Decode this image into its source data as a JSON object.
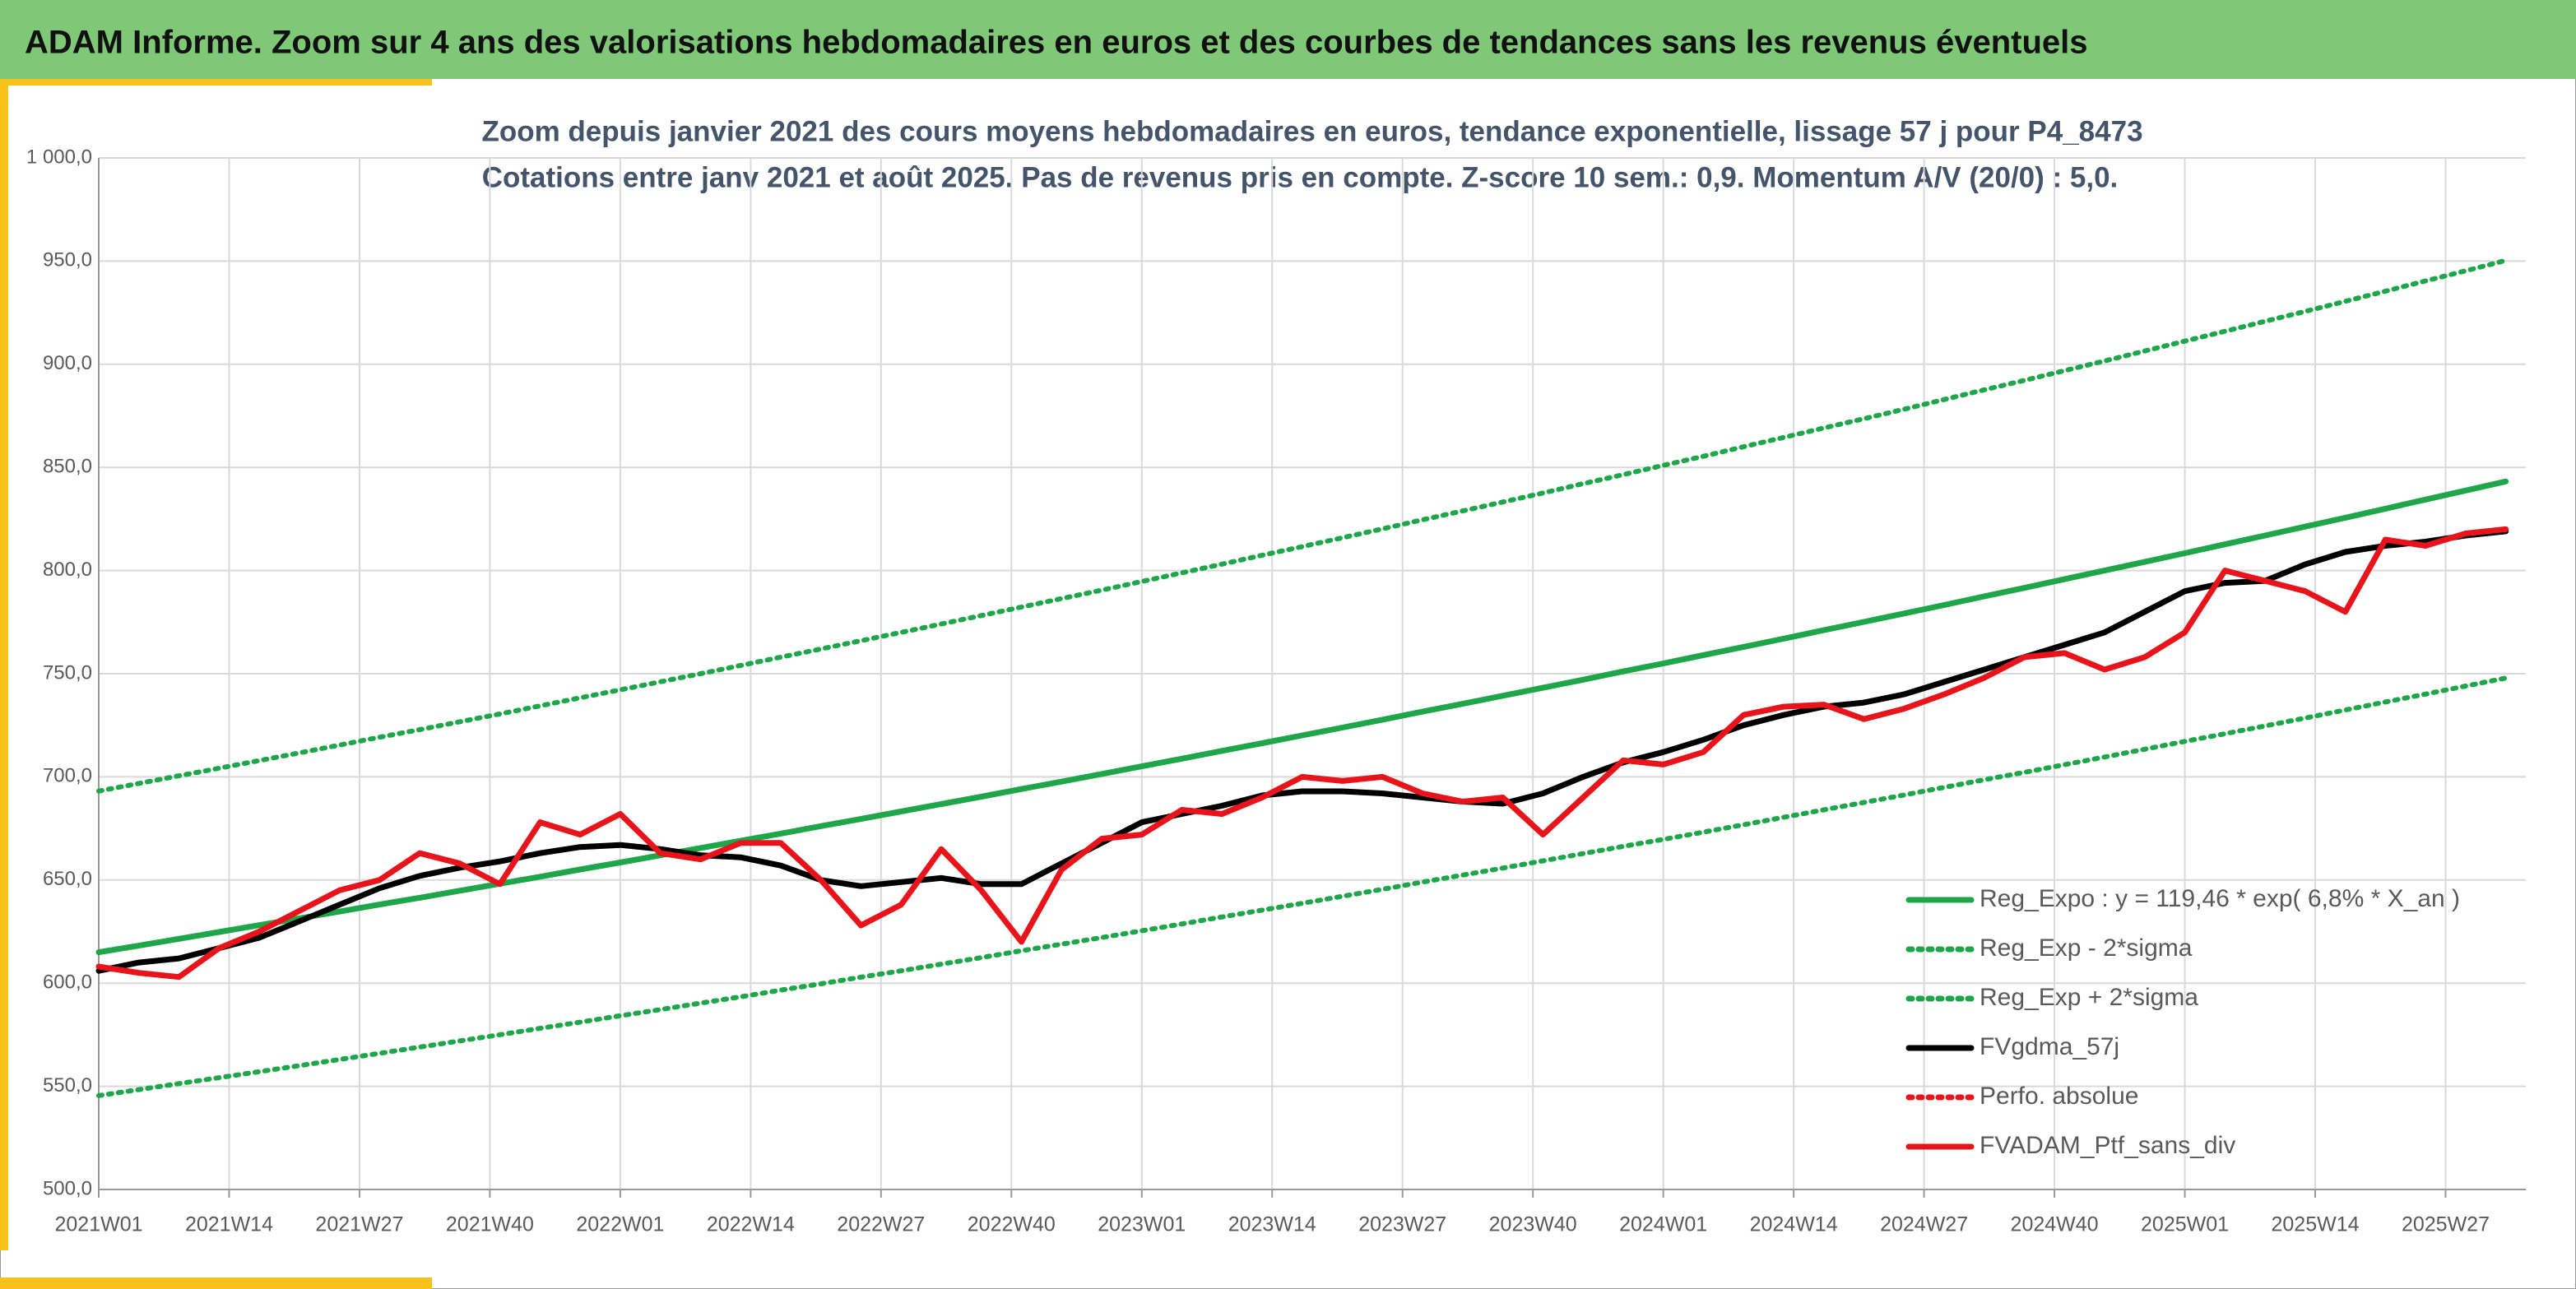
{
  "header": {
    "title": "ADAM Informe. Zoom sur 4 ans des valorisations hebdomadaires en euros et des courbes de tendances sans les revenus éventuels"
  },
  "chart_data": {
    "type": "line",
    "title": "Zoom depuis janvier 2021 des cours moyens hebdomadaires en euros, tendance exponentielle, lissage 57 j pour P4_8473",
    "subtitle": "Cotations entre janv 2021 et août 2025. Pas de revenus pris en compte. Z-score 10 sem.: 0,9. Momentum A/V (20/0) : 5,0.",
    "x": [
      0,
      4,
      8,
      12,
      16,
      20,
      24,
      28,
      32,
      36,
      40,
      44,
      48,
      52,
      56,
      60,
      64,
      68,
      72,
      76,
      80,
      84,
      88,
      92,
      96,
      100,
      104,
      108,
      112,
      116,
      120,
      124,
      128,
      132,
      136,
      140,
      144,
      148,
      152,
      156,
      160,
      164,
      168,
      172,
      176,
      180,
      184,
      188,
      192,
      196,
      200,
      204,
      208,
      212,
      216,
      220,
      224,
      228,
      232,
      236,
      240
    ],
    "xlim": [
      0,
      242
    ],
    "xticks": [
      {
        "value": 0,
        "label": "2021W01"
      },
      {
        "value": 13,
        "label": "2021W14"
      },
      {
        "value": 26,
        "label": "2021W27"
      },
      {
        "value": 39,
        "label": "2021W40"
      },
      {
        "value": 52,
        "label": "2022W01"
      },
      {
        "value": 65,
        "label": "2022W14"
      },
      {
        "value": 78,
        "label": "2022W27"
      },
      {
        "value": 91,
        "label": "2022W40"
      },
      {
        "value": 104,
        "label": "2023W01"
      },
      {
        "value": 117,
        "label": "2023W14"
      },
      {
        "value": 130,
        "label": "2023W27"
      },
      {
        "value": 143,
        "label": "2023W40"
      },
      {
        "value": 156,
        "label": "2024W01"
      },
      {
        "value": 169,
        "label": "2024W14"
      },
      {
        "value": 182,
        "label": "2024W27"
      },
      {
        "value": 195,
        "label": "2024W40"
      },
      {
        "value": 208,
        "label": "2025W01"
      },
      {
        "value": 221,
        "label": "2025W14"
      },
      {
        "value": 234,
        "label": "2025W27"
      }
    ],
    "ylim": [
      500,
      1000
    ],
    "yticks": [
      {
        "value": 500,
        "label": "500,0"
      },
      {
        "value": 550,
        "label": "550,0"
      },
      {
        "value": 600,
        "label": "600,0"
      },
      {
        "value": 650,
        "label": "650,0"
      },
      {
        "value": 700,
        "label": "700,0"
      },
      {
        "value": 750,
        "label": "750,0"
      },
      {
        "value": 800,
        "label": "800,0"
      },
      {
        "value": 850,
        "label": "850,0"
      },
      {
        "value": 900,
        "label": "900,0"
      },
      {
        "value": 950,
        "label": "950,0"
      },
      {
        "value": 1000,
        "label": "1 000,0"
      }
    ],
    "grid": true,
    "legend": "lower right",
    "series": [
      {
        "name": "Reg_Expo : y = 119,46 * exp( 6,8% *  X_an )",
        "color": "#1fa64a",
        "style": "solid",
        "values": [
          615.0,
          618.2,
          621.5,
          624.8,
          628.1,
          631.4,
          634.7,
          638.1,
          641.4,
          644.8,
          648.2,
          651.6,
          655.1,
          658.5,
          662.0,
          665.5,
          669.0,
          672.5,
          676.1,
          679.6,
          683.2,
          686.8,
          690.4,
          694.1,
          697.7,
          701.4,
          705.1,
          708.8,
          712.6,
          716.3,
          720.1,
          723.9,
          727.7,
          731.6,
          735.4,
          739.3,
          743.2,
          747.1,
          751.1,
          755.0,
          759.0,
          763.0,
          767.0,
          771.1,
          775.1,
          779.2,
          783.3,
          787.5,
          791.6,
          795.8,
          800.0,
          804.2,
          808.4,
          812.7,
          817.0,
          821.3,
          825.6,
          830.0,
          834.4,
          838.8,
          843.2
        ]
      },
      {
        "name": "Reg_Exp - 2*sigma",
        "color": "#1fa64a",
        "style": "dotted",
        "values": [
          545.5,
          548.4,
          551.3,
          554.2,
          557.1,
          560.0,
          563.0,
          566.0,
          569.0,
          572.0,
          575.0,
          578.1,
          581.1,
          584.2,
          587.2,
          590.3,
          593.4,
          596.6,
          599.7,
          602.9,
          606.0,
          609.2,
          612.4,
          615.7,
          618.9,
          622.1,
          625.4,
          628.7,
          632.1,
          635.4,
          638.7,
          642.1,
          645.5,
          649.0,
          652.4,
          655.8,
          659.3,
          662.8,
          666.3,
          669.7,
          673.2,
          676.8,
          680.4,
          684.0,
          687.6,
          691.2,
          694.9,
          698.6,
          702.2,
          705.9,
          709.6,
          713.4,
          717.2,
          720.9,
          724.7,
          728.5,
          732.4,
          736.3,
          740.1,
          744.0,
          747.9
        ]
      },
      {
        "name": "Reg_Exp + 2*sigma",
        "color": "#1fa64a",
        "style": "dotted",
        "values": [
          693.1,
          696.8,
          700.5,
          704.2,
          707.9,
          711.6,
          715.4,
          719.2,
          722.9,
          726.7,
          730.5,
          734.4,
          738.3,
          742.2,
          746.1,
          750.0,
          754.0,
          758.0,
          762.0,
          766.0,
          770.0,
          774.1,
          778.2,
          782.3,
          786.4,
          790.5,
          794.7,
          798.9,
          803.1,
          807.4,
          811.6,
          815.9,
          820.2,
          824.6,
          828.9,
          833.2,
          837.6,
          842.1,
          846.5,
          851.0,
          855.4,
          860.0,
          864.5,
          869.1,
          873.6,
          878.2,
          882.9,
          887.6,
          892.2,
          896.9,
          901.6,
          906.4,
          911.2,
          916.0,
          920.8,
          925.6,
          930.5,
          935.4,
          940.4,
          945.3,
          950.3
        ]
      },
      {
        "name": "FVgdma_57j",
        "color": "#000000",
        "style": "solid",
        "values": [
          606,
          610,
          612,
          617,
          622,
          630,
          638,
          646,
          652,
          656,
          659,
          663,
          666,
          667,
          665,
          662,
          661,
          657,
          650,
          647,
          649,
          651,
          648,
          648,
          658,
          668,
          678,
          682,
          686,
          691,
          693,
          693,
          692,
          690,
          688,
          687,
          692,
          700,
          707,
          712,
          718,
          725,
          730,
          734,
          736,
          740,
          746,
          752,
          758,
          764,
          770,
          780,
          790,
          794,
          795,
          803,
          809,
          812,
          814,
          817,
          819
        ]
      },
      {
        "name": "Perfo. absolue",
        "color": "#e8141c",
        "style": "dotted",
        "values": [
          null,
          null,
          null,
          null,
          null,
          null,
          null,
          null,
          null,
          null,
          null,
          null,
          null,
          null,
          null,
          null,
          null,
          null,
          null,
          null,
          null,
          null,
          null,
          null,
          null,
          null,
          null,
          null,
          null,
          null,
          null,
          null,
          null,
          null,
          null,
          null,
          null,
          null,
          null,
          null,
          null,
          null,
          null,
          null,
          null,
          null,
          null,
          null,
          null,
          null,
          null,
          null,
          null,
          null,
          null,
          null,
          null,
          null,
          null,
          null,
          null
        ]
      },
      {
        "name": "FVADAM_Ptf_sans_div",
        "color": "#e8141c",
        "style": "solid",
        "values": [
          608,
          605,
          603,
          617,
          625,
          635,
          645,
          650,
          663,
          658,
          648,
          678,
          672,
          682,
          663,
          660,
          668,
          668,
          650,
          628,
          638,
          665,
          645,
          620,
          655,
          670,
          672,
          684,
          682,
          690,
          700,
          698,
          700,
          692,
          688,
          690,
          672,
          690,
          708,
          706,
          712,
          730,
          734,
          735,
          728,
          733,
          740,
          748,
          758,
          760,
          752,
          758,
          770,
          800,
          795,
          790,
          780,
          815,
          812,
          818,
          820
        ]
      }
    ]
  }
}
